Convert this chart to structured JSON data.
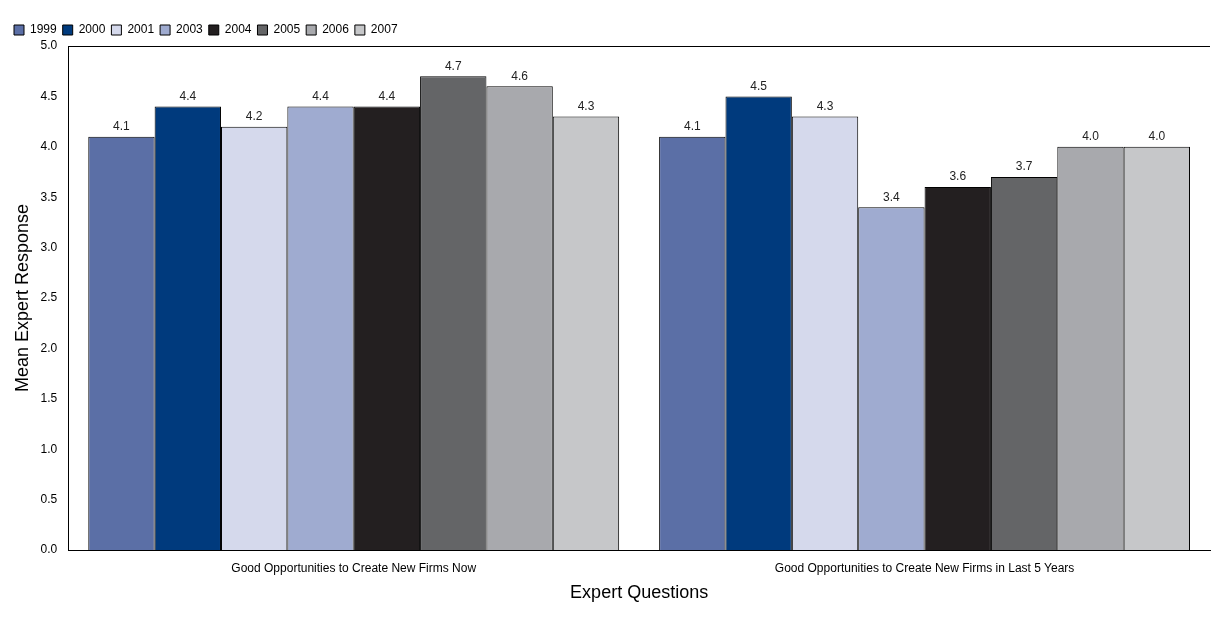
{
  "chart_data": {
    "type": "bar",
    "xlabel": "Expert Questions",
    "ylabel": "Mean Expert Response",
    "categories": [
      "Good Opportunities to Create New Firms Now",
      "Good Opportunities to Create New Firms in Last 5 Years"
    ],
    "series": [
      {
        "name": "1999",
        "color": "#5b6fa6",
        "values": [
          4.1,
          4.1
        ],
        "value_labels": [
          "4.1",
          "4.1"
        ]
      },
      {
        "name": "2000",
        "color": "#003a7d",
        "values": [
          4.4,
          4.5
        ],
        "value_labels": [
          "4.4",
          "4.5"
        ]
      },
      {
        "name": "2001",
        "color": "#d5d9ec",
        "values": [
          4.2,
          4.3
        ],
        "value_labels": [
          "4.2",
          "4.3"
        ]
      },
      {
        "name": "2003",
        "color": "#9fabd0",
        "values": [
          4.4,
          3.4
        ],
        "value_labels": [
          "4.4",
          "3.4"
        ]
      },
      {
        "name": "2004",
        "color": "#231f20",
        "values": [
          4.4,
          3.6
        ],
        "value_labels": [
          "4.4",
          "3.6"
        ]
      },
      {
        "name": "2005",
        "color": "#646567",
        "values": [
          4.7,
          3.7
        ],
        "value_labels": [
          "4.7",
          "3.7"
        ]
      },
      {
        "name": "2006",
        "color": "#a8a9ad",
        "values": [
          4.6,
          4.0
        ],
        "value_labels": [
          "4.6",
          "4.0"
        ]
      },
      {
        "name": "2007",
        "color": "#c6c7c9",
        "values": [
          4.3,
          4.0
        ],
        "value_labels": [
          "4.3",
          "4.0"
        ]
      }
    ],
    "ylim": [
      0,
      5
    ],
    "yticks": [
      "0.0",
      "0.5",
      "1.0",
      "1.5",
      "2.0",
      "2.5",
      "3.0",
      "3.5",
      "4.0",
      "4.5",
      "5.0"
    ],
    "grid": false,
    "legend": "top left"
  }
}
